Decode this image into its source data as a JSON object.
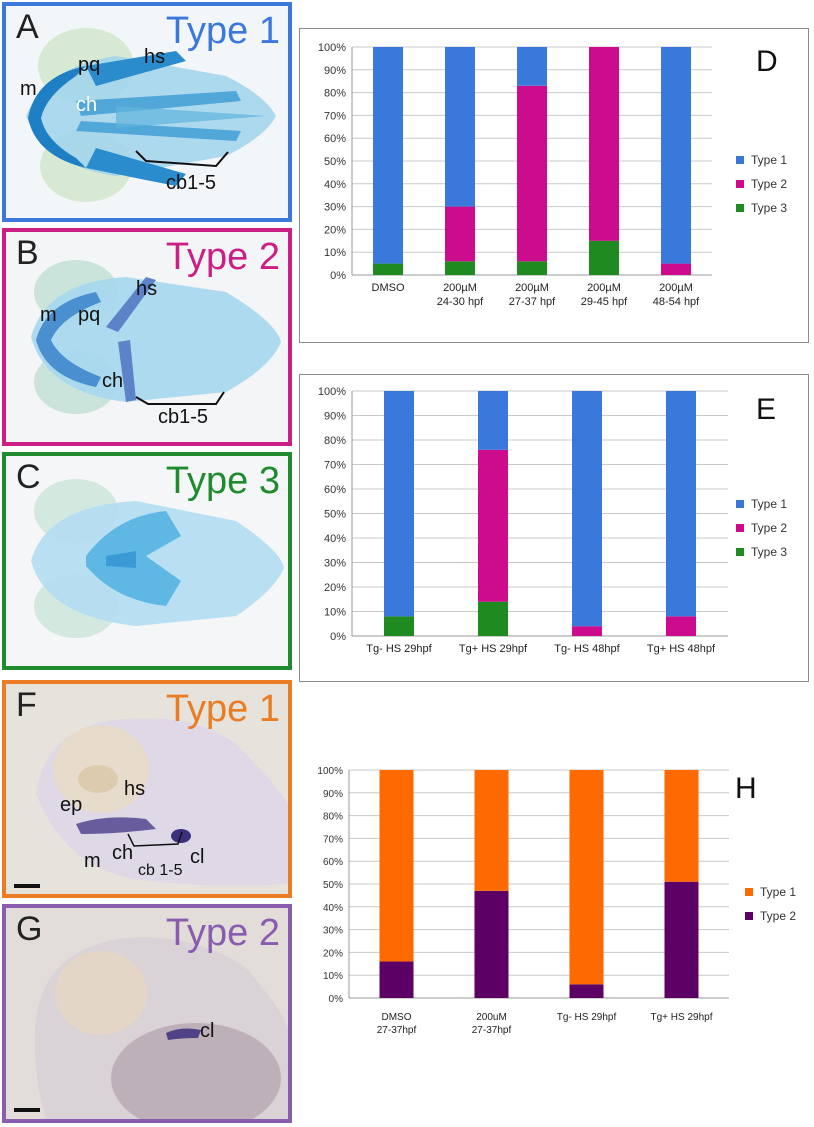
{
  "panels": {
    "A": {
      "letter": "A",
      "title": "Type 1",
      "title_color": "#3c78dc",
      "labels": {
        "m": "m",
        "pq": "pq",
        "hs": "hs",
        "ch": "ch",
        "cb": "cb1-5"
      }
    },
    "B": {
      "letter": "B",
      "title": "Type 2",
      "title_color": "#cc1f86",
      "labels": {
        "m": "m",
        "pq": "pq",
        "hs": "hs",
        "ch": "ch",
        "cb": "cb1-5"
      }
    },
    "C": {
      "letter": "C",
      "title": "Type 3",
      "title_color": "#1f8a2e"
    },
    "F": {
      "letter": "F",
      "title": "Type 1",
      "title_color": "#ea7d24",
      "labels": {
        "ep": "ep",
        "hs": "hs",
        "m": "m",
        "ch": "ch",
        "cb": "cb 1-5",
        "cl": "cl"
      }
    },
    "G": {
      "letter": "G",
      "title": "Type 2",
      "title_color": "#8a5cb0",
      "labels": {
        "cl": "cl"
      }
    }
  },
  "chart_data": [
    {
      "panel": "D",
      "type": "bar",
      "stacked": true,
      "categories": [
        [
          "DMSO"
        ],
        [
          "200µM",
          "24-30 hpf"
        ],
        [
          "200µM",
          "27-37 hpf"
        ],
        [
          "200µM",
          "29-45 hpf"
        ],
        [
          "200µM",
          "48-54 hpf"
        ]
      ],
      "series": [
        {
          "name": "Type 3",
          "color": "#1f8a1f",
          "values": [
            5,
            6,
            6,
            15,
            0
          ]
        },
        {
          "name": "Type 2",
          "color": "#cc0c8c",
          "values": [
            0,
            24,
            77,
            85,
            5
          ]
        },
        {
          "name": "Type 1",
          "color": "#3a78dc",
          "values": [
            95,
            70,
            17,
            0,
            95
          ]
        }
      ],
      "legend_order": [
        "Type 1",
        "Type 2",
        "Type 3"
      ],
      "yticks": [
        "0%",
        "10%",
        "20%",
        "30%",
        "40%",
        "50%",
        "60%",
        "70%",
        "80%",
        "90%",
        "100%"
      ],
      "ylim": [
        0,
        100
      ],
      "grid": true,
      "legend_position": "right"
    },
    {
      "panel": "E",
      "type": "bar",
      "stacked": true,
      "categories": [
        [
          "Tg- HS 29hpf"
        ],
        [
          "Tg+ HS 29hpf"
        ],
        [
          "Tg- HS 48hpf"
        ],
        [
          "Tg+ HS 48hpf"
        ]
      ],
      "series": [
        {
          "name": "Type 3",
          "color": "#1f8a1f",
          "values": [
            8,
            14,
            0,
            0
          ]
        },
        {
          "name": "Type 2",
          "color": "#cc0c8c",
          "values": [
            0,
            62,
            4,
            8
          ]
        },
        {
          "name": "Type 1",
          "color": "#3a78dc",
          "values": [
            92,
            24,
            96,
            92
          ]
        }
      ],
      "legend_order": [
        "Type 1",
        "Type 2",
        "Type 3"
      ],
      "yticks": [
        "0%",
        "10%",
        "20%",
        "30%",
        "40%",
        "50%",
        "60%",
        "70%",
        "80%",
        "90%",
        "100%"
      ],
      "ylim": [
        0,
        100
      ],
      "grid": true,
      "legend_position": "right"
    },
    {
      "panel": "H",
      "type": "bar",
      "stacked": true,
      "categories": [
        [
          "DMSO",
          "27-37hpf"
        ],
        [
          "200uM",
          "27-37hpf"
        ],
        [
          "Tg- HS 29hpf"
        ],
        [
          "Tg+ HS 29hpf"
        ]
      ],
      "series": [
        {
          "name": "Type 2",
          "color": "#5c0066",
          "values": [
            16,
            47,
            6,
            51
          ]
        },
        {
          "name": "Type 1",
          "color": "#ff6a00",
          "values": [
            84,
            53,
            94,
            49
          ]
        }
      ],
      "legend_order": [
        "Type 1",
        "Type 2"
      ],
      "yticks": [
        "0%",
        "10%",
        "20%",
        "30%",
        "40%",
        "50%",
        "60%",
        "70%",
        "80%",
        "90%",
        "100%"
      ],
      "ylim": [
        0,
        100
      ],
      "grid": true,
      "legend_position": "right"
    }
  ]
}
